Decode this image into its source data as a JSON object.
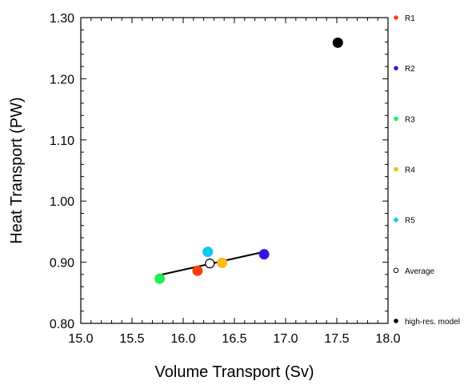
{
  "chart_data": {
    "type": "scatter",
    "title": "",
    "xlabel": "Volume Transport (Sv)",
    "ylabel": "Heat Transport (PW)",
    "xlim": [
      15.0,
      18.0
    ],
    "ylim": [
      0.8,
      1.3
    ],
    "x_ticks": [
      "15.0",
      "15.5",
      "16.0",
      "16.5",
      "17.0",
      "17.5",
      "18.0"
    ],
    "y_ticks": [
      "0.80",
      "0.90",
      "1.00",
      "1.10",
      "1.20",
      "1.30"
    ],
    "grid": false,
    "legend_position": "right, outside plot",
    "series": [
      {
        "name": "R1",
        "color": "#ff3c0c",
        "marker": "filled-circle",
        "x": 16.14,
        "y": 0.886
      },
      {
        "name": "R2",
        "color": "#3a10e6",
        "marker": "filled-circle",
        "x": 16.79,
        "y": 0.913
      },
      {
        "name": "R3",
        "color": "#1ef05a",
        "marker": "filled-circle",
        "x": 15.77,
        "y": 0.873
      },
      {
        "name": "R4",
        "color": "#ffbb12",
        "marker": "filled-circle",
        "x": 16.38,
        "y": 0.899
      },
      {
        "name": "R5",
        "color": "#12c6f5",
        "marker": "filled-circle",
        "x": 16.24,
        "y": 0.917
      },
      {
        "name": "Average",
        "color": "#000000",
        "marker": "open-circle",
        "x": 16.26,
        "y": 0.898
      },
      {
        "name": "high-res. model",
        "color": "#000000",
        "marker": "filled-circle",
        "x": 17.51,
        "y": 1.259
      }
    ],
    "regression_line": {
      "color": "#000000",
      "x": [
        15.77,
        16.79
      ],
      "y": [
        0.879,
        0.917
      ]
    }
  }
}
